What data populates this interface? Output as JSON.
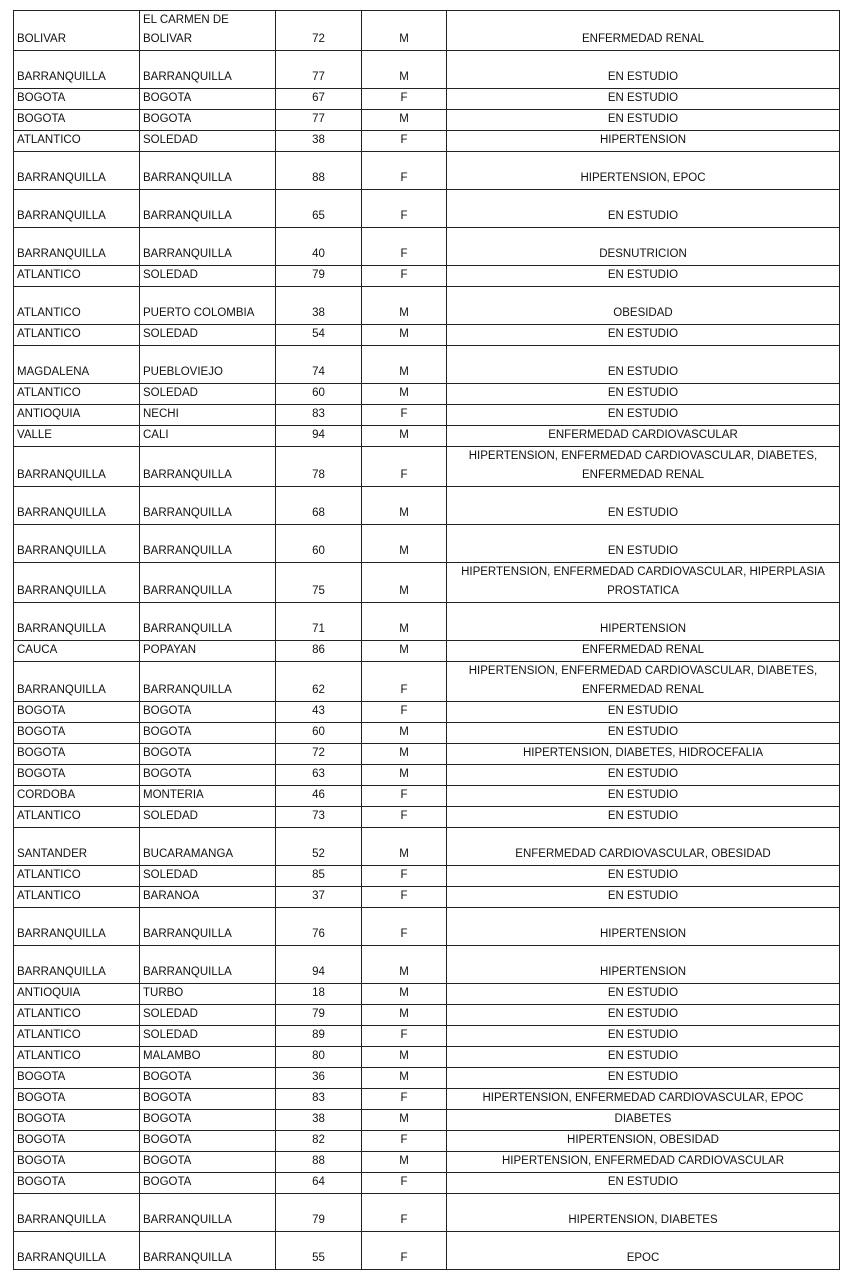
{
  "table": {
    "rows": [
      [
        "BOLIVAR",
        "EL CARMEN DE BOLIVAR",
        "72",
        "M",
        "ENFERMEDAD RENAL"
      ],
      [
        "BARRANQUILLA",
        "BARRANQUILLA",
        "77",
        "M",
        "EN ESTUDIO"
      ],
      [
        "BOGOTA",
        "BOGOTA",
        "67",
        "F",
        "EN ESTUDIO"
      ],
      [
        "BOGOTA",
        "BOGOTA",
        "77",
        "M",
        "EN ESTUDIO"
      ],
      [
        "ATLANTICO",
        "SOLEDAD",
        "38",
        "F",
        "HIPERTENSION"
      ],
      [
        "BARRANQUILLA",
        "BARRANQUILLA",
        "88",
        "F",
        "HIPERTENSION, EPOC"
      ],
      [
        "BARRANQUILLA",
        "BARRANQUILLA",
        "65",
        "F",
        "EN ESTUDIO"
      ],
      [
        "BARRANQUILLA",
        "BARRANQUILLA",
        "40",
        "F",
        "DESNUTRICION"
      ],
      [
        "ATLANTICO",
        "SOLEDAD",
        "79",
        "F",
        "EN ESTUDIO"
      ],
      [
        "ATLANTICO",
        "PUERTO COLOMBIA",
        "38",
        "M",
        "OBESIDAD"
      ],
      [
        "ATLANTICO",
        "SOLEDAD",
        "54",
        "M",
        "EN ESTUDIO"
      ],
      [
        "MAGDALENA",
        "PUEBLOVIEJO",
        "74",
        "M",
        "EN ESTUDIO"
      ],
      [
        "ATLANTICO",
        "SOLEDAD",
        "60",
        "M",
        "EN ESTUDIO"
      ],
      [
        "ANTIOQUIA",
        "NECHI",
        "83",
        "F",
        "EN ESTUDIO"
      ],
      [
        "VALLE",
        "CALI",
        "94",
        "M",
        "ENFERMEDAD CARDIOVASCULAR"
      ],
      [
        "BARRANQUILLA",
        "BARRANQUILLA",
        "78",
        "F",
        "HIPERTENSION, ENFERMEDAD CARDIOVASCULAR, DIABETES, ENFERMEDAD RENAL"
      ],
      [
        "BARRANQUILLA",
        "BARRANQUILLA",
        "68",
        "M",
        "EN ESTUDIO"
      ],
      [
        "BARRANQUILLA",
        "BARRANQUILLA",
        "60",
        "M",
        "EN ESTUDIO"
      ],
      [
        "BARRANQUILLA",
        "BARRANQUILLA",
        "75",
        "M",
        "HIPERTENSION, ENFERMEDAD CARDIOVASCULAR, HIPERPLASIA PROSTATICA"
      ],
      [
        "BARRANQUILLA",
        "BARRANQUILLA",
        "71",
        "M",
        "HIPERTENSION"
      ],
      [
        "CAUCA",
        "POPAYAN",
        "86",
        "M",
        "ENFERMEDAD RENAL"
      ],
      [
        "BARRANQUILLA",
        "BARRANQUILLA",
        "62",
        "F",
        "HIPERTENSION, ENFERMEDAD CARDIOVASCULAR, DIABETES, ENFERMEDAD RENAL"
      ],
      [
        "BOGOTA",
        "BOGOTA",
        "43",
        "F",
        "EN ESTUDIO"
      ],
      [
        "BOGOTA",
        "BOGOTA",
        "60",
        "M",
        "EN ESTUDIO"
      ],
      [
        "BOGOTA",
        "BOGOTA",
        "72",
        "M",
        "HIPERTENSION, DIABETES, HIDROCEFALIA"
      ],
      [
        "BOGOTA",
        "BOGOTA",
        "63",
        "M",
        "EN ESTUDIO"
      ],
      [
        "CORDOBA",
        "MONTERIA",
        "46",
        "F",
        "EN ESTUDIO"
      ],
      [
        "ATLANTICO",
        "SOLEDAD",
        "73",
        "F",
        "EN ESTUDIO"
      ],
      [
        "SANTANDER",
        "BUCARAMANGA",
        "52",
        "M",
        "ENFERMEDAD CARDIOVASCULAR, OBESIDAD"
      ],
      [
        "ATLANTICO",
        "SOLEDAD",
        "85",
        "F",
        "EN ESTUDIO"
      ],
      [
        "ATLANTICO",
        "BARANOA",
        "37",
        "F",
        "EN ESTUDIO"
      ],
      [
        "BARRANQUILLA",
        "BARRANQUILLA",
        "76",
        "F",
        "HIPERTENSION"
      ],
      [
        "BARRANQUILLA",
        "BARRANQUILLA",
        "94",
        "M",
        "HIPERTENSION"
      ],
      [
        "ANTIOQUIA",
        "TURBO",
        "18",
        "M",
        "EN ESTUDIO"
      ],
      [
        "ATLANTICO",
        "SOLEDAD",
        "79",
        "M",
        "EN ESTUDIO"
      ],
      [
        "ATLANTICO",
        "SOLEDAD",
        "89",
        "F",
        "EN ESTUDIO"
      ],
      [
        "ATLANTICO",
        "MALAMBO",
        "80",
        "M",
        "EN ESTUDIO"
      ],
      [
        "BOGOTA",
        "BOGOTA",
        "36",
        "M",
        "EN ESTUDIO"
      ],
      [
        "BOGOTA",
        "BOGOTA",
        "83",
        "F",
        "HIPERTENSION, ENFERMEDAD CARDIOVASCULAR, EPOC"
      ],
      [
        "BOGOTA",
        "BOGOTA",
        "38",
        "M",
        "DIABETES"
      ],
      [
        "BOGOTA",
        "BOGOTA",
        "82",
        "F",
        "HIPERTENSION, OBESIDAD"
      ],
      [
        "BOGOTA",
        "BOGOTA",
        "88",
        "M",
        "HIPERTENSION, ENFERMEDAD CARDIOVASCULAR"
      ],
      [
        "BOGOTA",
        "BOGOTA",
        "64",
        "F",
        "EN ESTUDIO"
      ],
      [
        "BARRANQUILLA",
        "BARRANQUILLA",
        "79",
        "F",
        "HIPERTENSION, DIABETES"
      ],
      [
        "BARRANQUILLA",
        "BARRANQUILLA",
        "55",
        "F",
        "EPOC"
      ]
    ]
  }
}
